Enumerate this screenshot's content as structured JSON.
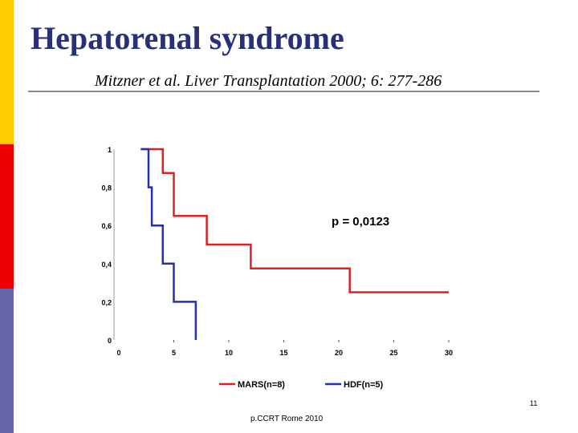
{
  "slide": {
    "title": "Hepatorenal syndrome",
    "citation": "Mitzner et al. Liver Transplantation 2000; 6: 277-286",
    "slide_number": "11",
    "footer": "p.CCRT Rome 2010",
    "stripe_colors": [
      "#ffcc00",
      "#ee0000",
      "#6666aa"
    ],
    "title_color": "#28307a"
  },
  "chart_data": {
    "type": "line",
    "step": "post",
    "annotation": "p = 0,0123",
    "x_ticks": [
      0,
      5,
      10,
      15,
      20,
      25,
      30
    ],
    "y_ticks": [
      0,
      0.2,
      0.4,
      0.6,
      0.8,
      1
    ],
    "y_tick_labels": [
      "0",
      "0,2",
      "0,4",
      "0,6",
      "0,8",
      "1"
    ],
    "xlim": [
      0,
      30
    ],
    "ylim": [
      0,
      1
    ],
    "grid": false,
    "legend_position": "bottom",
    "series": [
      {
        "name": "MARS(n=8)",
        "color": "#e02020",
        "points": [
          [
            2,
            1
          ],
          [
            4,
            1
          ],
          [
            4,
            0.875
          ],
          [
            5,
            0.875
          ],
          [
            5,
            0.65
          ],
          [
            8,
            0.65
          ],
          [
            8,
            0.5
          ],
          [
            12,
            0.5
          ],
          [
            12,
            0.375
          ],
          [
            21,
            0.375
          ],
          [
            21,
            0.25
          ],
          [
            30,
            0.25
          ]
        ]
      },
      {
        "name": "HDF(n=5)",
        "color": "#2030b0",
        "points": [
          [
            2,
            1
          ],
          [
            2.7,
            1
          ],
          [
            2.7,
            0.8
          ],
          [
            3,
            0.8
          ],
          [
            3,
            0.6
          ],
          [
            4,
            0.6
          ],
          [
            4,
            0.4
          ],
          [
            5,
            0.4
          ],
          [
            5,
            0.2
          ],
          [
            7,
            0.2
          ],
          [
            7,
            0
          ]
        ]
      }
    ]
  }
}
